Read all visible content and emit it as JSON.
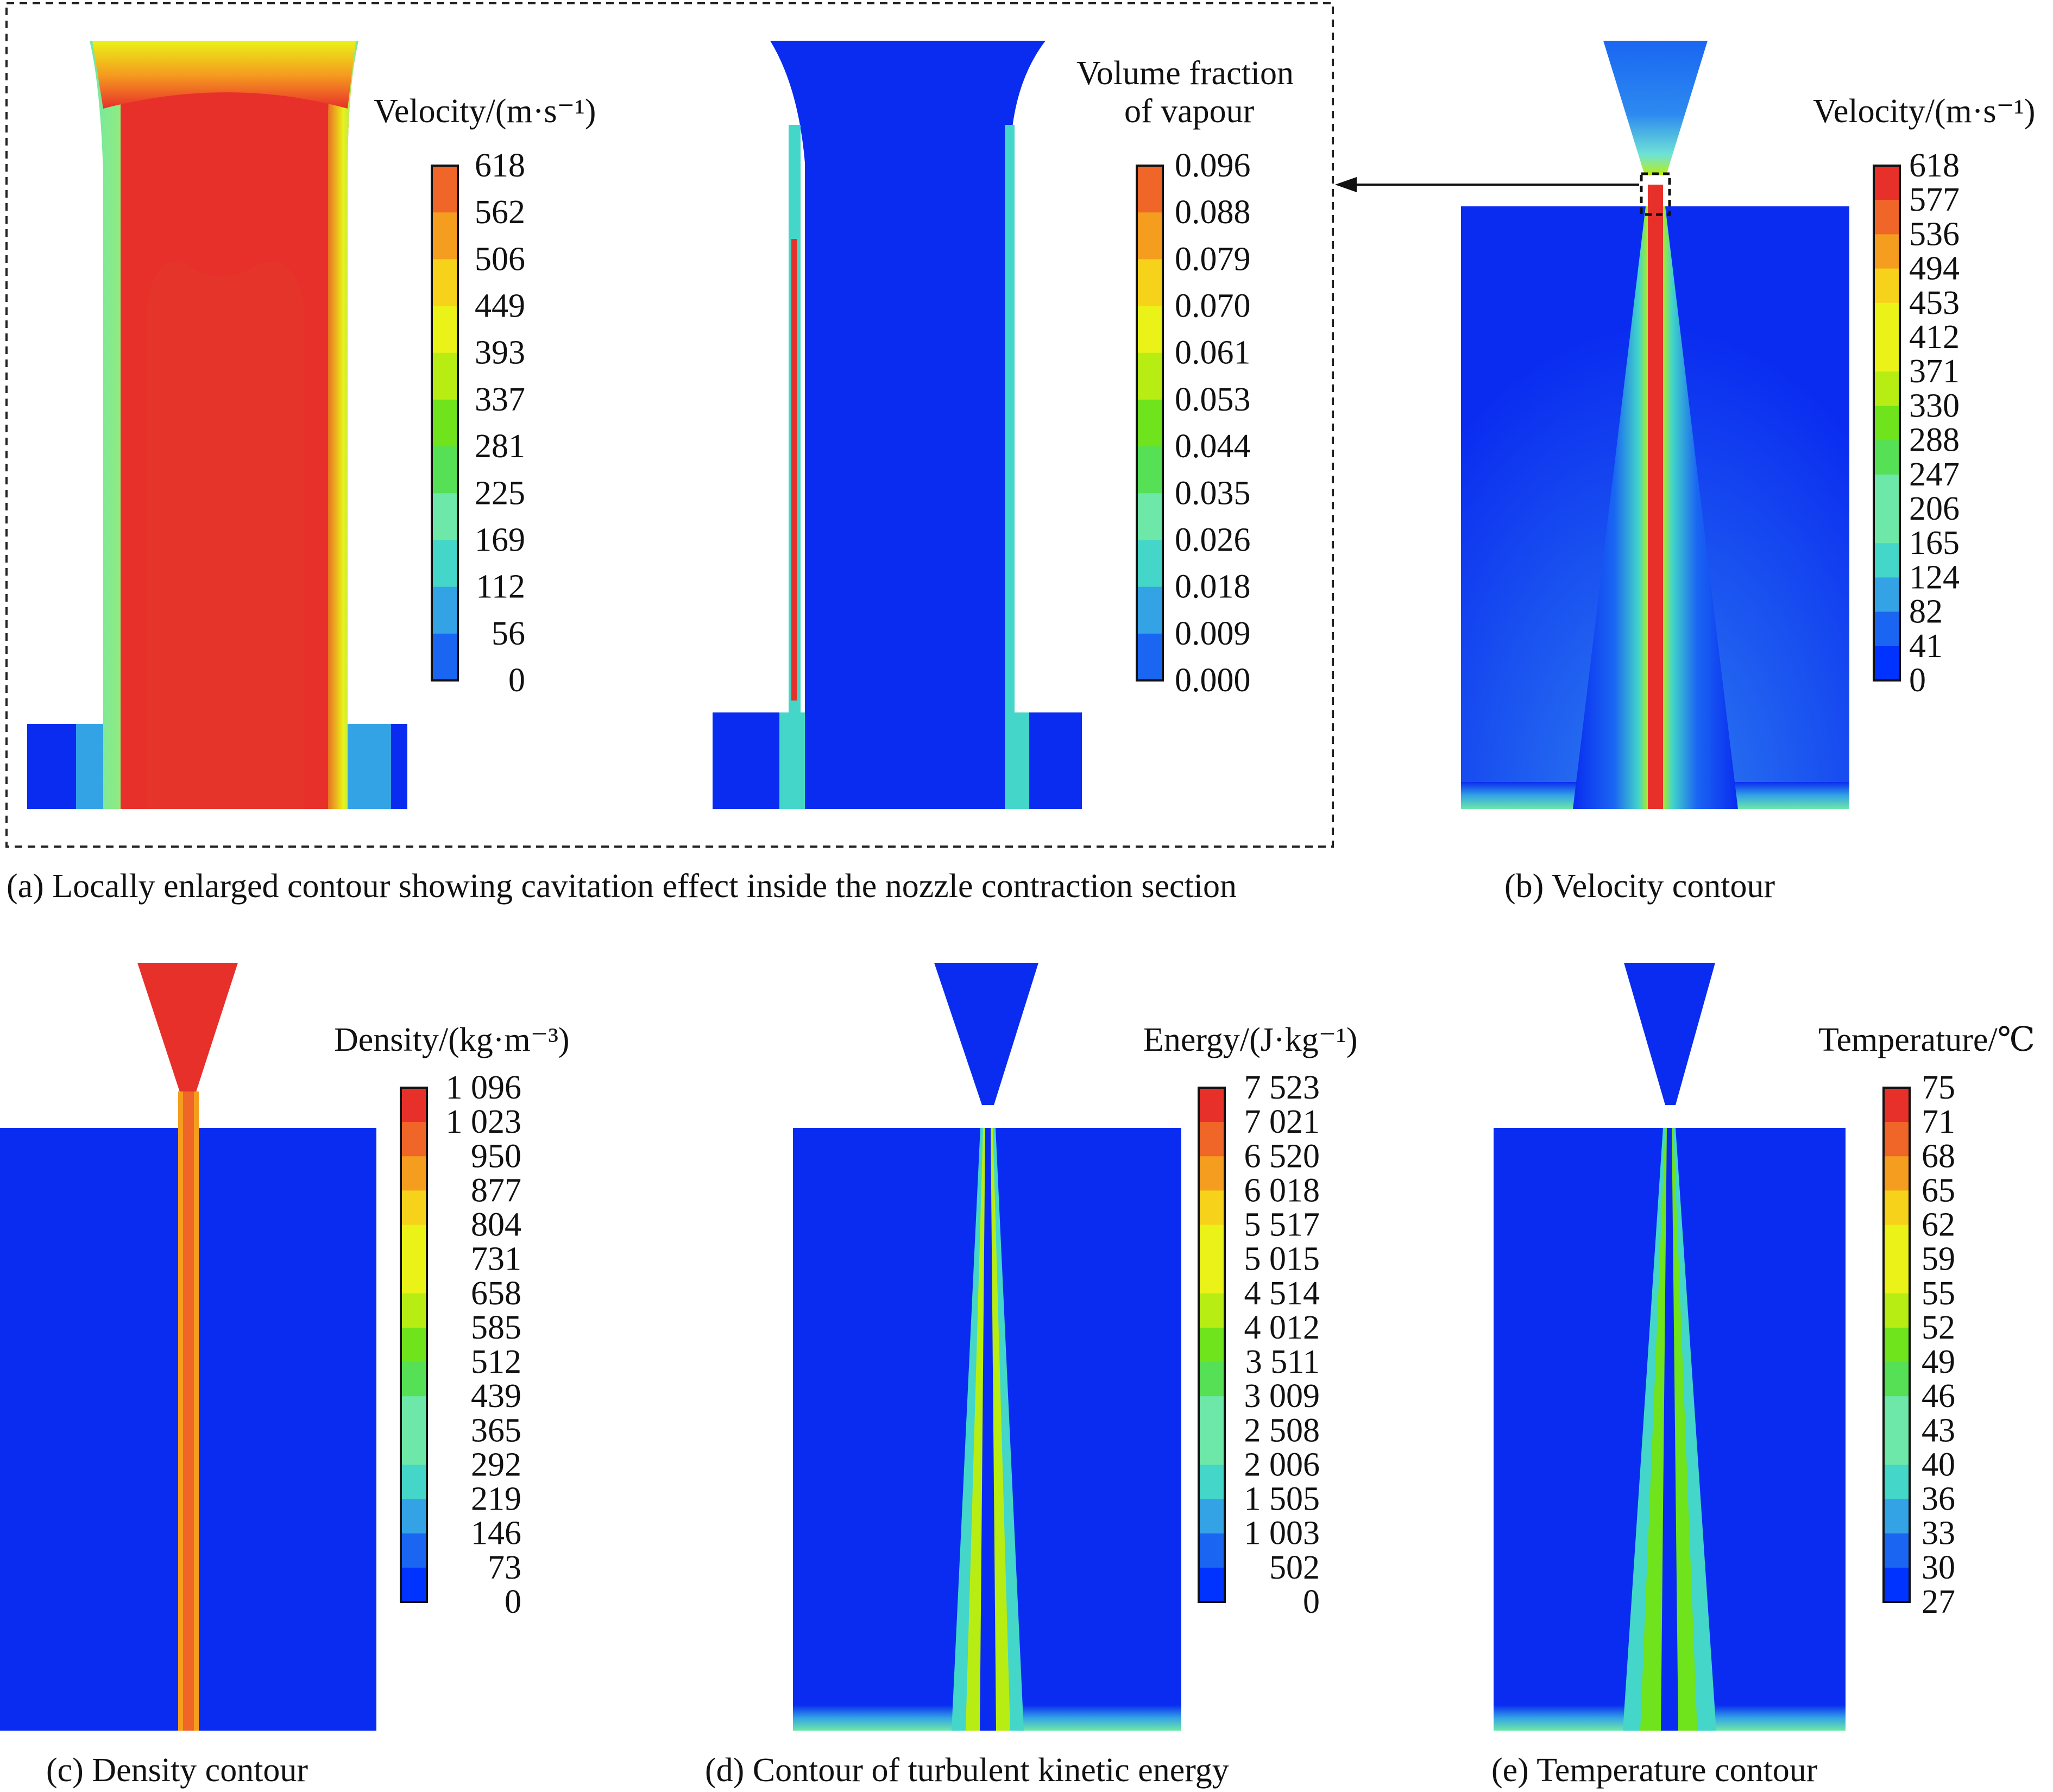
{
  "colors": {
    "scale": [
      "#0033ff",
      "#1a66f2",
      "#33a3e6",
      "#44d6c8",
      "#6ee8a8",
      "#55e055",
      "#6fe31c",
      "#b8ed14",
      "#eaf217",
      "#f7d21a",
      "#f59d1f",
      "#f06528",
      "#e8302a"
    ],
    "field_blue": "#0a2cf0",
    "field_red": "#e8302a",
    "frame": "#222222"
  },
  "panels": {
    "a_velocity": {
      "legend_title": "Velocity/(m·s⁻¹)",
      "ticks": [
        "618",
        "562",
        "506",
        "449",
        "393",
        "337",
        "281",
        "225",
        "169",
        "112",
        "56",
        "0"
      ]
    },
    "a_vapour": {
      "legend_title_line1": "Volume fraction",
      "legend_title_line2": "of vapour",
      "ticks": [
        "0.096",
        "0.088",
        "0.079",
        "0.070",
        "0.061",
        "0.053",
        "0.044",
        "0.035",
        "0.026",
        "0.018",
        "0.009",
        "0.000"
      ]
    },
    "b": {
      "legend_title": "Velocity/(m·s⁻¹)",
      "ticks": [
        "618",
        "577",
        "536",
        "494",
        "453",
        "412",
        "371",
        "330",
        "288",
        "247",
        "206",
        "165",
        "124",
        "82",
        "41",
        "0"
      ]
    },
    "c": {
      "legend_title": "Density/(kg·m⁻³)",
      "ticks": [
        "1 096",
        "1 023",
        "950",
        "877",
        "804",
        "731",
        "658",
        "585",
        "512",
        "439",
        "365",
        "292",
        "219",
        "146",
        "73",
        "0"
      ]
    },
    "d": {
      "legend_title": "Energy/(J·kg⁻¹)",
      "ticks": [
        "7 523",
        "7 021",
        "6 520",
        "6 018",
        "5 517",
        "5 015",
        "4 514",
        "4 012",
        "3 511",
        "3 009",
        "2 508",
        "2 006",
        "1 505",
        "1 003",
        "502",
        "0"
      ]
    },
    "e": {
      "legend_title": "Temperature/℃",
      "ticks": [
        "75",
        "71",
        "68",
        "65",
        "62",
        "59",
        "55",
        "52",
        "49",
        "46",
        "43",
        "40",
        "36",
        "33",
        "30",
        "27"
      ]
    }
  },
  "captions": {
    "a": "(a) Locally enlarged contour showing cavitation effect inside the nozzle contraction section",
    "b": "(b) Velocity contour",
    "c": "(c) Density contour",
    "d": "(d) Contour of turbulent kinetic energy",
    "e": "(e) Temperature contour"
  }
}
